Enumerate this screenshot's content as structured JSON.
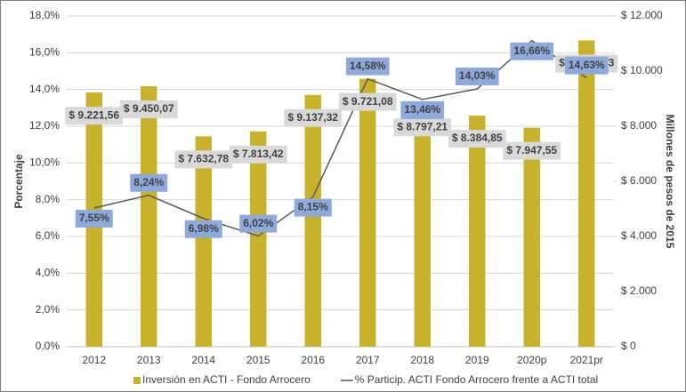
{
  "chart_data": {
    "type": "bar",
    "categories": [
      "2012",
      "2013",
      "2014",
      "2015",
      "2016",
      "2017",
      "2018",
      "2019",
      "2020p",
      "2021pr"
    ],
    "ylabel": "Porcentaje",
    "y2label": "Millones de pesos de 2015",
    "ylim": [
      0,
      18
    ],
    "yticks": [
      {
        "value": 0,
        "label": "0,0%"
      },
      {
        "value": 2,
        "label": "2,0%"
      },
      {
        "value": 4,
        "label": "4,0%"
      },
      {
        "value": 6,
        "label": "6,0%"
      },
      {
        "value": 8,
        "label": "8,0%"
      },
      {
        "value": 10,
        "label": "10,0%"
      },
      {
        "value": 12,
        "label": "12,0%"
      },
      {
        "value": 14,
        "label": "14,0%"
      },
      {
        "value": 16,
        "label": "16,0%"
      },
      {
        "value": 18,
        "label": "18,0%"
      }
    ],
    "y2lim": [
      0,
      12000
    ],
    "y2ticks": [
      {
        "value": 0,
        "label": "$ 0"
      },
      {
        "value": 2000,
        "label": "$ 2.000"
      },
      {
        "value": 4000,
        "label": "$ 4.000"
      },
      {
        "value": 6000,
        "label": "$ 6.000"
      },
      {
        "value": 8000,
        "label": "$ 8.000"
      },
      {
        "value": 10000,
        "label": "$ 10.000"
      },
      {
        "value": 12000,
        "label": "$ 12.000"
      }
    ],
    "grid": true,
    "legend": "bottom",
    "series": [
      {
        "name": "Inversión en ACTI - Fondo Arrocero",
        "type": "bar",
        "axis": "y2",
        "color": "#c8b22c",
        "values": [
          9221.56,
          9450.07,
          7632.78,
          7813.42,
          9137.32,
          9721.08,
          8797.21,
          8384.85,
          7947.55,
          11114.43
        ],
        "value_labels": [
          "$ 9.221,56",
          "$ 9.450,07",
          "$ 7.632,78",
          "$ 7.813,42",
          "$ 9.137,32",
          "$ 9.721,08",
          "$ 8.797,21",
          "$ 8.384,85",
          "$ 7.947,55",
          "$ 11.114,43"
        ]
      },
      {
        "name": "% Particip. ACTI Fondo Arrocero frente a ACTI total",
        "type": "line",
        "color": "#595959",
        "values": [
          7.55,
          8.24,
          6.98,
          6.02,
          8.15,
          14.58,
          13.46,
          14.03,
          16.66,
          14.63
        ],
        "value_labels": [
          "7,55%",
          "8,24%",
          "6,98%",
          "6,02%",
          "8,15%",
          "14,58%",
          "13,46%",
          "14,03%",
          "16,66%",
          "14,63%"
        ]
      }
    ]
  }
}
